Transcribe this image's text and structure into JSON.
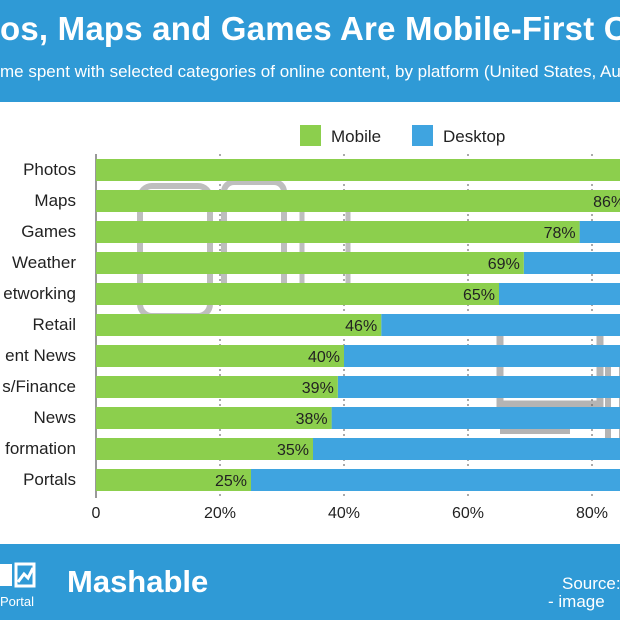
{
  "header": {
    "title": "os, Maps and Games Are Mobile-First Co",
    "subtitle": "me spent with selected categories of online content, by platform (United States, Au"
  },
  "footer": {
    "statista_text": "Portal",
    "brand": "Mashable",
    "source_line1": "Source:",
    "source_line2": "- image"
  },
  "colors": {
    "mobile": "#8ccf4d",
    "desktop": "#3fa4e0",
    "header_bg": "#2f9ad6"
  },
  "chart_data": {
    "type": "bar",
    "orientation": "horizontal",
    "stacked": true,
    "percent_stacked": true,
    "title": "os, Maps and Games Are Mobile-First Co",
    "xlabel": "",
    "ylabel": "",
    "xlim": [
      0,
      100
    ],
    "x_ticks": [
      0,
      20,
      40,
      60,
      80
    ],
    "x_tick_labels": [
      "0",
      "20%",
      "40%",
      "60%",
      "80%"
    ],
    "grid": true,
    "legend": {
      "placement": "top",
      "entries": [
        "Mobile",
        "Desktop"
      ]
    },
    "categories": [
      "Photos",
      "Maps",
      "Games",
      "Weather",
      "etworking",
      "Retail",
      "ent News",
      "s/Finance",
      "News",
      "formation",
      "Portals"
    ],
    "series": [
      {
        "name": "Mobile",
        "values": [
          100,
          86,
          78,
          69,
          65,
          46,
          40,
          39,
          38,
          35,
          25
        ]
      },
      {
        "name": "Desktop",
        "values": [
          0,
          14,
          22,
          31,
          35,
          54,
          60,
          61,
          62,
          65,
          75
        ]
      }
    ],
    "value_labels": [
      "",
      "86%",
      "78%",
      "69%",
      "65%",
      "46%",
      "40%",
      "39%",
      "38%",
      "35%",
      "25%"
    ]
  }
}
